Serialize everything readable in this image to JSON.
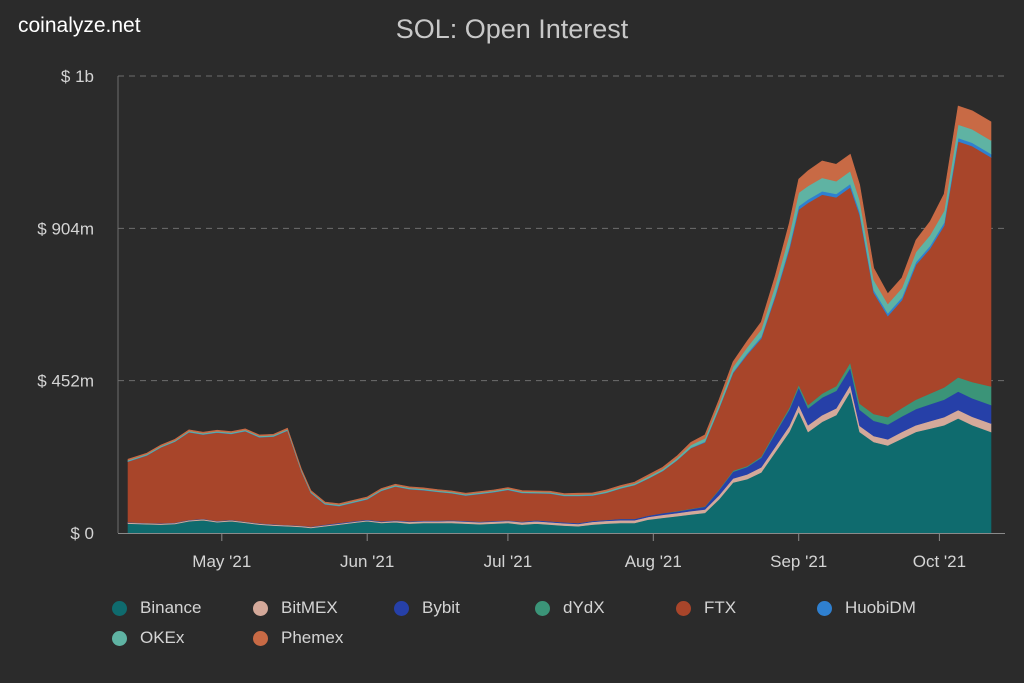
{
  "brand": "coinalyze.net",
  "chart_data": {
    "type": "area",
    "stacked": true,
    "title": "SOL: Open Interest",
    "xlabel": "",
    "ylabel": "",
    "ylim": [
      0,
      1356
    ],
    "y_ticks": [
      {
        "value": 0,
        "label": "$ 0"
      },
      {
        "value": 452,
        "label": "$ 452m"
      },
      {
        "value": 904,
        "label": "$ 904m"
      },
      {
        "value": 1356,
        "label": "$ 1b"
      }
    ],
    "x_range": [
      "2021-04-11",
      "2021-10-12"
    ],
    "x_ticks": [
      {
        "date": "2021-05-01",
        "label": "May '21"
      },
      {
        "date": "2021-06-01",
        "label": "Jun '21"
      },
      {
        "date": "2021-07-01",
        "label": "Jul '21"
      },
      {
        "date": "2021-08-01",
        "label": "Aug '21"
      },
      {
        "date": "2021-09-01",
        "label": "Sep '21"
      },
      {
        "date": "2021-10-01",
        "label": "Oct '21"
      }
    ],
    "grid": true,
    "legend_position": "bottom",
    "x": [
      "2021-04-11",
      "2021-04-15",
      "2021-04-18",
      "2021-04-21",
      "2021-04-24",
      "2021-04-27",
      "2021-04-30",
      "2021-05-03",
      "2021-05-06",
      "2021-05-09",
      "2021-05-12",
      "2021-05-15",
      "2021-05-18",
      "2021-05-20",
      "2021-05-23",
      "2021-05-26",
      "2021-05-29",
      "2021-06-01",
      "2021-06-04",
      "2021-06-07",
      "2021-06-10",
      "2021-06-13",
      "2021-06-16",
      "2021-06-19",
      "2021-06-22",
      "2021-06-25",
      "2021-06-28",
      "2021-07-01",
      "2021-07-04",
      "2021-07-07",
      "2021-07-10",
      "2021-07-13",
      "2021-07-16",
      "2021-07-19",
      "2021-07-22",
      "2021-07-25",
      "2021-07-28",
      "2021-07-31",
      "2021-08-03",
      "2021-08-06",
      "2021-08-09",
      "2021-08-12",
      "2021-08-15",
      "2021-08-18",
      "2021-08-21",
      "2021-08-24",
      "2021-08-27",
      "2021-08-30",
      "2021-09-01",
      "2021-09-03",
      "2021-09-06",
      "2021-09-09",
      "2021-09-12",
      "2021-09-14",
      "2021-09-17",
      "2021-09-20",
      "2021-09-23",
      "2021-09-26",
      "2021-09-29",
      "2021-10-02",
      "2021-10-05",
      "2021-10-08",
      "2021-10-12"
    ],
    "series": [
      {
        "name": "Binance",
        "color": "#0f6b6e",
        "values": [
          28,
          26,
          25,
          27,
          35,
          38,
          32,
          35,
          30,
          25,
          22,
          20,
          18,
          15,
          20,
          25,
          30,
          35,
          30,
          32,
          28,
          30,
          30,
          30,
          28,
          26,
          28,
          30,
          25,
          28,
          25,
          22,
          20,
          25,
          28,
          30,
          30,
          40,
          45,
          50,
          55,
          60,
          100,
          150,
          160,
          180,
          240,
          300,
          360,
          300,
          330,
          350,
          420,
          300,
          270,
          260,
          280,
          300,
          310,
          320,
          340,
          320,
          300
        ]
      },
      {
        "name": "BitMEX",
        "color": "#d4a99a",
        "values": [
          3,
          3,
          3,
          3,
          3,
          3,
          3,
          3,
          3,
          3,
          3,
          3,
          3,
          3,
          3,
          3,
          3,
          3,
          3,
          4,
          5,
          5,
          5,
          6,
          6,
          6,
          6,
          6,
          7,
          7,
          7,
          7,
          7,
          8,
          8,
          8,
          8,
          8,
          9,
          9,
          10,
          10,
          12,
          12,
          14,
          15,
          16,
          18,
          20,
          20,
          20,
          20,
          20,
          18,
          18,
          18,
          20,
          20,
          22,
          24,
          25,
          25,
          25
        ]
      },
      {
        "name": "Bybit",
        "color": "#2640a8",
        "values": [
          1,
          1,
          1,
          1,
          1,
          1,
          1,
          1,
          1,
          1,
          1,
          1,
          1,
          1,
          2,
          2,
          2,
          2,
          2,
          2,
          2,
          2,
          2,
          2,
          2,
          2,
          2,
          2,
          2,
          3,
          3,
          3,
          3,
          3,
          3,
          4,
          4,
          4,
          5,
          5,
          6,
          8,
          15,
          20,
          22,
          28,
          40,
          48,
          52,
          50,
          52,
          52,
          50,
          48,
          45,
          44,
          46,
          48,
          50,
          52,
          55,
          55,
          55
        ]
      },
      {
        "name": "dYdX",
        "color": "#3b9478",
        "values": [
          0,
          0,
          0,
          0,
          0,
          0,
          0,
          0,
          0,
          0,
          0,
          0,
          0,
          0,
          0,
          0,
          0,
          0,
          0,
          0,
          0,
          0,
          0,
          0,
          0,
          0,
          0,
          0,
          0,
          0,
          0,
          0,
          0,
          0,
          0,
          0,
          0,
          0,
          0,
          1,
          1,
          1,
          2,
          3,
          3,
          4,
          5,
          6,
          8,
          10,
          12,
          14,
          16,
          18,
          20,
          22,
          25,
          28,
          32,
          36,
          42,
          48,
          55
        ]
      },
      {
        "name": "FTX",
        "color": "#a8452a",
        "values": [
          180,
          200,
          225,
          240,
          260,
          250,
          262,
          255,
          268,
          255,
          260,
          280,
          160,
          100,
          60,
          50,
          55,
          60,
          90,
          100,
          95,
          90,
          85,
          80,
          75,
          82,
          85,
          90,
          85,
          80,
          82,
          78,
          80,
          75,
          80,
          90,
          100,
          110,
          125,
          150,
          180,
          190,
          240,
          290,
          330,
          350,
          400,
          470,
          520,
          600,
          590,
          560,
          520,
          560,
          360,
          300,
          320,
          400,
          430,
          480,
          700,
          700,
          680
        ]
      },
      {
        "name": "HuobiDM",
        "color": "#2f80d0",
        "values": [
          1,
          1,
          1,
          1,
          1,
          1,
          1,
          1,
          1,
          1,
          1,
          1,
          1,
          1,
          1,
          1,
          1,
          1,
          1,
          1,
          1,
          1,
          1,
          1,
          1,
          1,
          1,
          1,
          1,
          1,
          1,
          1,
          1,
          1,
          1,
          1,
          1,
          1,
          1,
          1,
          1,
          2,
          2,
          3,
          4,
          5,
          6,
          8,
          10,
          10,
          10,
          10,
          10,
          9,
          8,
          8,
          8,
          8,
          8,
          9,
          10,
          10,
          10
        ]
      },
      {
        "name": "OKEx",
        "color": "#5fb3a3",
        "values": [
          3,
          3,
          3,
          3,
          3,
          3,
          3,
          3,
          3,
          3,
          3,
          3,
          3,
          3,
          3,
          3,
          3,
          3,
          3,
          3,
          3,
          3,
          3,
          3,
          3,
          3,
          3,
          3,
          3,
          3,
          3,
          3,
          3,
          3,
          4,
          4,
          4,
          5,
          5,
          6,
          8,
          10,
          12,
          15,
          18,
          22,
          28,
          35,
          40,
          40,
          40,
          38,
          38,
          35,
          30,
          28,
          28,
          30,
          32,
          35,
          40,
          40,
          40
        ]
      },
      {
        "name": "Phemex",
        "color": "#c86a45",
        "values": [
          3,
          3,
          3,
          3,
          3,
          3,
          3,
          3,
          3,
          3,
          3,
          3,
          3,
          3,
          3,
          3,
          3,
          3,
          3,
          3,
          3,
          3,
          3,
          3,
          3,
          3,
          3,
          3,
          3,
          3,
          3,
          3,
          4,
          4,
          4,
          4,
          4,
          5,
          5,
          6,
          8,
          10,
          12,
          15,
          18,
          22,
          28,
          35,
          40,
          45,
          50,
          50,
          50,
          45,
          35,
          30,
          30,
          35,
          40,
          50,
          55,
          55,
          55
        ]
      }
    ]
  },
  "legend": [
    {
      "label": "Binance",
      "color": "#0f6b6e"
    },
    {
      "label": "BitMEX",
      "color": "#d4a99a"
    },
    {
      "label": "Bybit",
      "color": "#2640a8"
    },
    {
      "label": "dYdX",
      "color": "#3b9478"
    },
    {
      "label": "FTX",
      "color": "#a8452a"
    },
    {
      "label": "HuobiDM",
      "color": "#2f80d0"
    },
    {
      "label": "OKEx",
      "color": "#5fb3a3"
    },
    {
      "label": "Phemex",
      "color": "#c86a45"
    }
  ]
}
